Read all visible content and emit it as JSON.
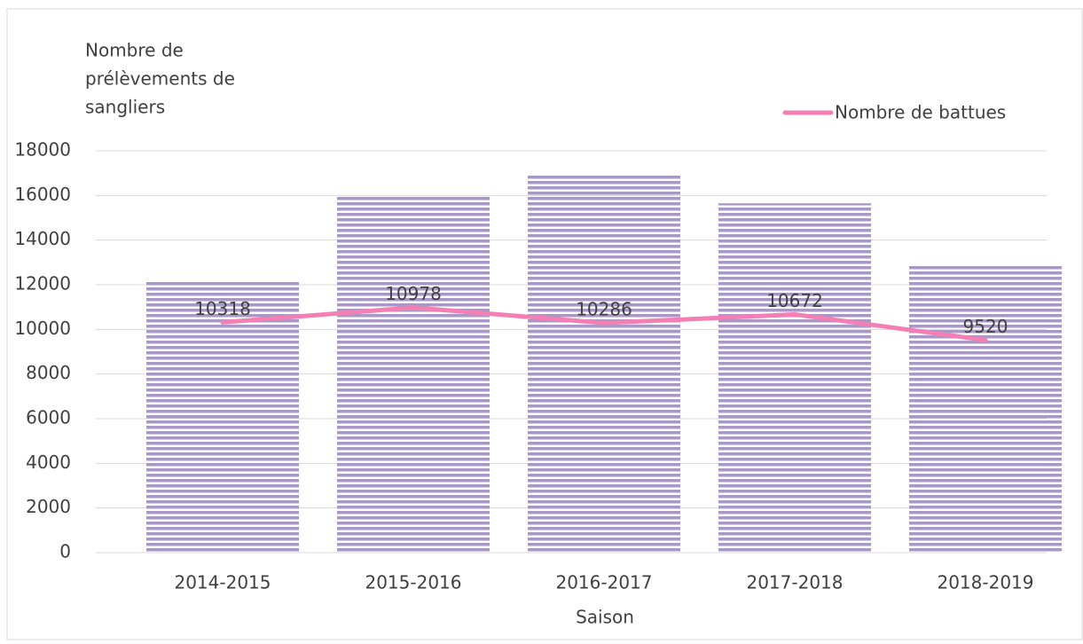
{
  "chart_data": {
    "type": "bar",
    "ylabel_lines": [
      "Nombre de",
      "prélèvements de",
      "sangliers"
    ],
    "xlabel": "Saison",
    "categories": [
      "2014-2015",
      "2015-2016",
      "2016-2017",
      "2017-2018",
      "2018-2019"
    ],
    "series": [
      {
        "type": "bar",
        "color": "#a899c4",
        "values": [
          12200,
          16000,
          16950,
          15650,
          12850
        ]
      },
      {
        "type": "line",
        "name": "Nombre de battues",
        "color": "#f47fb5",
        "values": [
          10318,
          10978,
          10286,
          10672,
          9520
        ]
      }
    ],
    "ylim": [
      0,
      18000
    ],
    "yticks": [
      0,
      2000,
      4000,
      6000,
      8000,
      10000,
      12000,
      14000,
      16000,
      18000
    ],
    "grid": true,
    "legend": "top-right"
  }
}
